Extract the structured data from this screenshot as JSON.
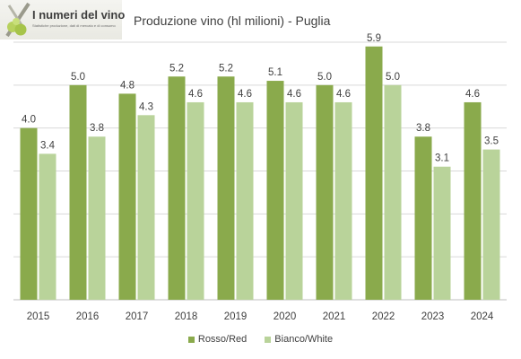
{
  "logo": {
    "title": "I numeri del vino",
    "subtitle": "Statistiche produzione, dati di mercato e di consumo"
  },
  "colors": {
    "rosso": "#8aaa4c",
    "bianco": "#b9d39a",
    "grid": "#d9d9d9",
    "axis": "#bfbfbf",
    "text": "#404040"
  },
  "chart_data": {
    "type": "bar",
    "title": "Produzione vino (hl milioni) - Puglia",
    "categories": [
      "2015",
      "2016",
      "2017",
      "2018",
      "2019",
      "2020",
      "2021",
      "2022",
      "2023",
      "2024"
    ],
    "series": [
      {
        "name": "Rosso/Red",
        "values": [
          4.0,
          5.0,
          4.8,
          5.2,
          5.2,
          5.1,
          5.0,
          5.9,
          3.8,
          4.6
        ],
        "color": "#8aaa4c"
      },
      {
        "name": "Bianco/White",
        "values": [
          3.4,
          3.8,
          4.3,
          4.6,
          4.6,
          4.6,
          4.6,
          5.0,
          3.1,
          3.5
        ],
        "color": "#b9d39a"
      }
    ],
    "ylim": [
      0,
      6
    ],
    "grid": true,
    "legend": "bottom"
  }
}
